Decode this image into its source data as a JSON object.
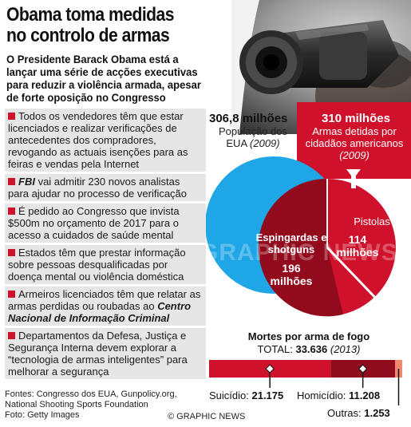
{
  "title_line1": "Obama toma medidas",
  "title_line2": "no controlo de armas",
  "intro": "O Presidente Barack Obama está a lançar uma série de acções executivas para reduzir a violência armada, apesar de forte oposição no Congresso",
  "bullets": [
    {
      "text": "Todos os vendedores têm que estar licenciados e realizar verificações de antecedentes dos compradores, revogando as actuais isenções para as feiras e vendas pela Internet"
    },
    {
      "em": "FBI",
      "text": " vai admitir 230 novos analistas para ajudar no processo de verificação"
    },
    {
      "text": "É pedido ao Congresso que invista $500m no orçamento de 2017 para o acesso a cuidados de saúde mental"
    },
    {
      "text": "Estados têm que prestar informação sobre pessoas desqualificadas por doença mental ou violência doméstica"
    },
    {
      "text": "Armeiros licenciados têm que relatar as armas perdidas ou roubadas ao ",
      "em": "Centro Nacional de Informação Criminal"
    },
    {
      "text": "Departamentos da Defesa, Justiça e Segurança Interna devem explorar a “tecnologia de armas inteligentes” para melhorar a segurança"
    }
  ],
  "population": {
    "value": "306,8 milhões",
    "label": "População dos EUA",
    "year": "(2009)"
  },
  "arms": {
    "value": "310 milhões",
    "label": "Armas detidas por cidadãos americanos",
    "year": "(2009)"
  },
  "pistols": {
    "label": "Pistolas",
    "value": "114 milhões"
  },
  "rifles": {
    "label": "Espingardas e shotguns",
    "value": "196 milhões"
  },
  "deaths": {
    "title": "Mortes por arma de fogo",
    "total_label": "TOTAL: ",
    "total_value": "33.636",
    "year": "(2013)",
    "suicide_label": "Suicídio: ",
    "suicide_value": "21.175",
    "homicide_label": "Homicídio: ",
    "homicide_value": "11.208",
    "other_label": "Outras: ",
    "other_value": "1.253"
  },
  "sources": "Fontes: Congresso dos EUA, Gunpolicy.org, National Shooting Sports Foundation",
  "photo_credit": "Foto: Getty Images",
  "copyright": "© GRAPHIC NEWS",
  "watermark": "GRAPHIC NEWS",
  "chart_data": {
    "type": "bar",
    "title": "Mortes por arma de fogo",
    "categories": [
      "Suicídio",
      "Homicídio",
      "Outras"
    ],
    "values": [
      21175,
      11208,
      1253
    ],
    "total": 33636,
    "colors": [
      "#d0112b",
      "#8e0c1c",
      "#f0876e"
    ]
  },
  "colors": {
    "accent": "#d0112b",
    "blue": "#1fa6e6",
    "dark_red": "#8e0c1c",
    "panel": "#e6e6e6"
  }
}
